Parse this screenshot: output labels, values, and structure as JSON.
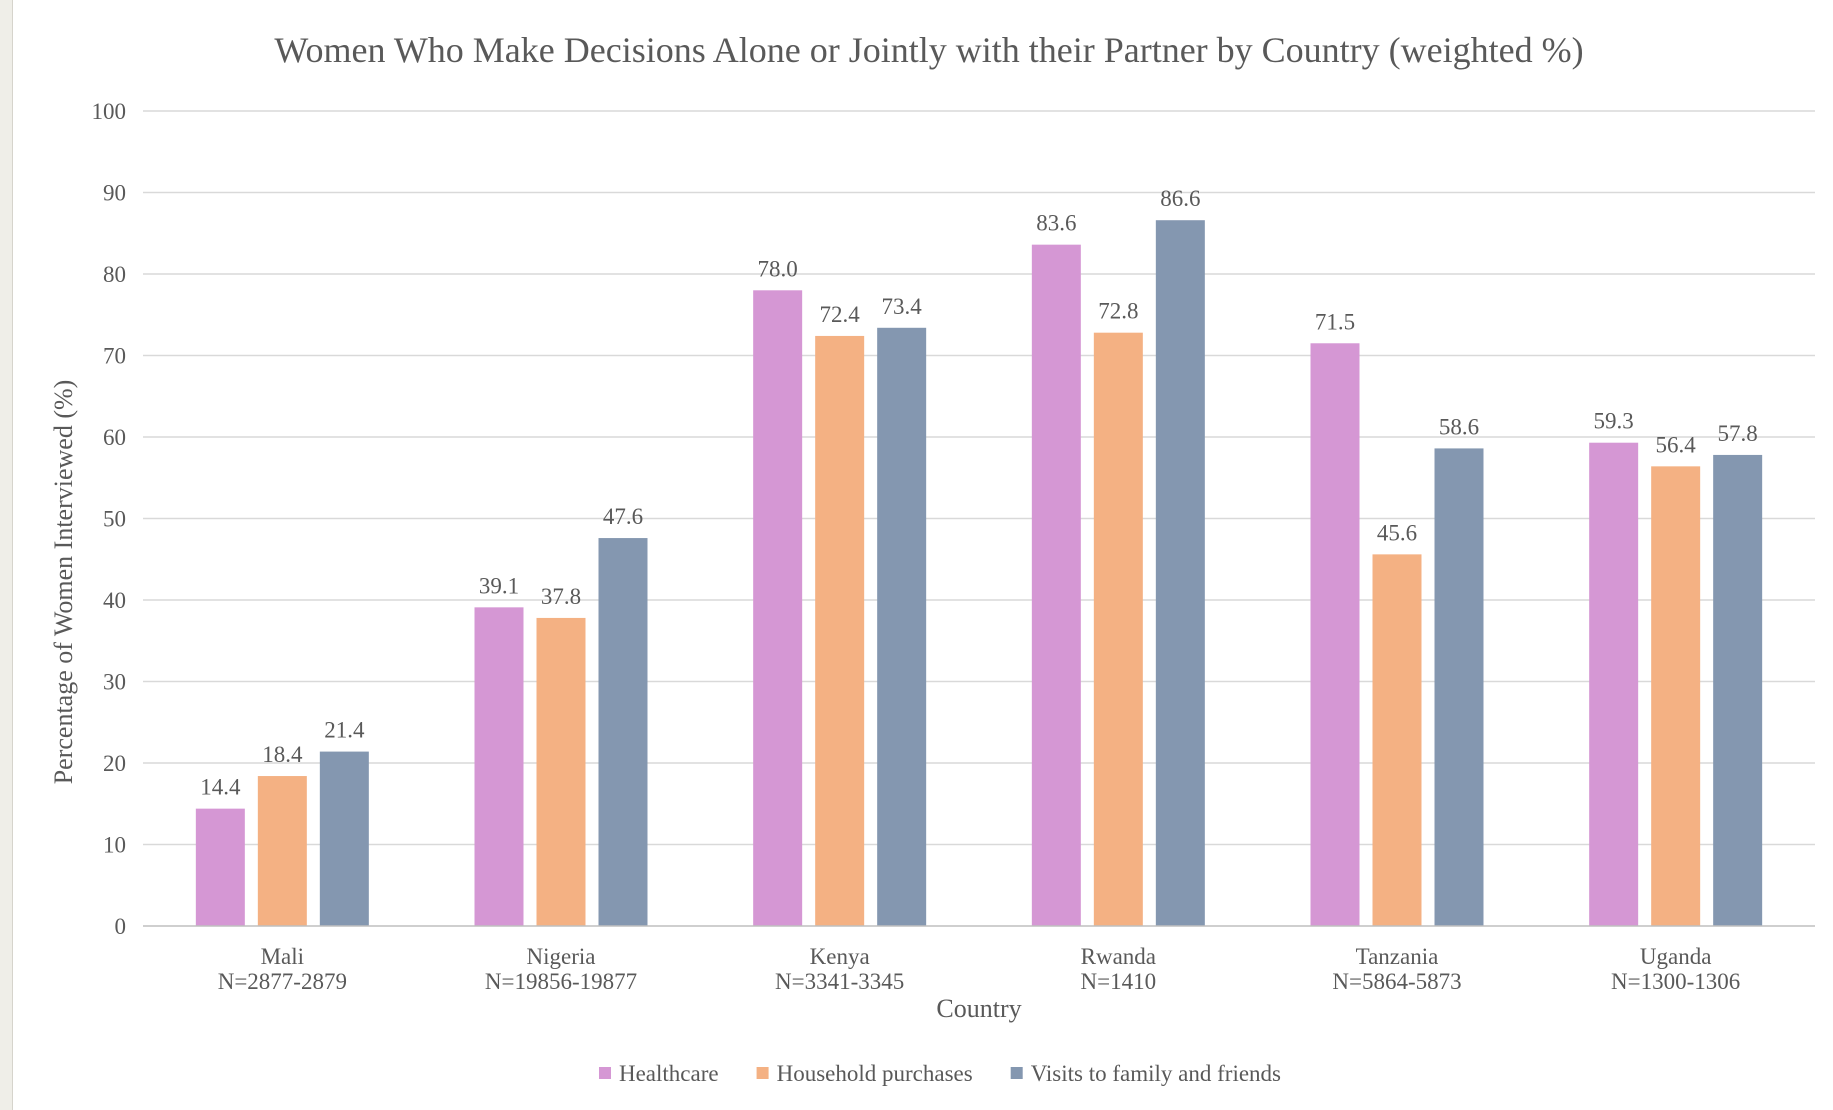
{
  "chart_data": {
    "type": "bar",
    "title": "Women Who Make Decisions Alone or Jointly with their Partner by Country (weighted %)",
    "xlabel": "Country",
    "ylabel": "Percentage of Women Interviewed (%)",
    "ylim": [
      0,
      100
    ],
    "yticks": [
      "0",
      "10",
      "20",
      "30",
      "40",
      "50",
      "60",
      "70",
      "80",
      "90",
      "100"
    ],
    "grid": true,
    "legend_position": "bottom",
    "categories": [
      {
        "name": "Mali",
        "n": "N=2877-2879"
      },
      {
        "name": "Nigeria",
        "n": "N=19856-19877"
      },
      {
        "name": "Kenya",
        "n": "N=3341-3345"
      },
      {
        "name": "Rwanda",
        "n": "N=1410"
      },
      {
        "name": "Tanzania",
        "n": "N=5864-5873"
      },
      {
        "name": "Uganda",
        "n": "N=1300-1306"
      }
    ],
    "series": [
      {
        "name": "Healthcare",
        "color": "#d597d4",
        "values": [
          14.4,
          39.1,
          78.0,
          83.6,
          71.5,
          59.3
        ],
        "labels": [
          "14.4",
          "39.1",
          "78.0",
          "83.6",
          "71.5",
          "59.3"
        ]
      },
      {
        "name": "Household purchases",
        "color": "#f4b183",
        "values": [
          18.4,
          37.8,
          72.4,
          72.8,
          45.6,
          56.4
        ],
        "labels": [
          "18.4",
          "37.8",
          "72.4",
          "72.8",
          "45.6",
          "56.4"
        ]
      },
      {
        "name": "Visits to family and friends",
        "color": "#8497b0",
        "values": [
          21.4,
          47.6,
          73.4,
          86.6,
          58.6,
          57.8
        ],
        "labels": [
          "21.4",
          "47.6",
          "73.4",
          "86.6",
          "58.6",
          "57.8"
        ]
      }
    ]
  }
}
